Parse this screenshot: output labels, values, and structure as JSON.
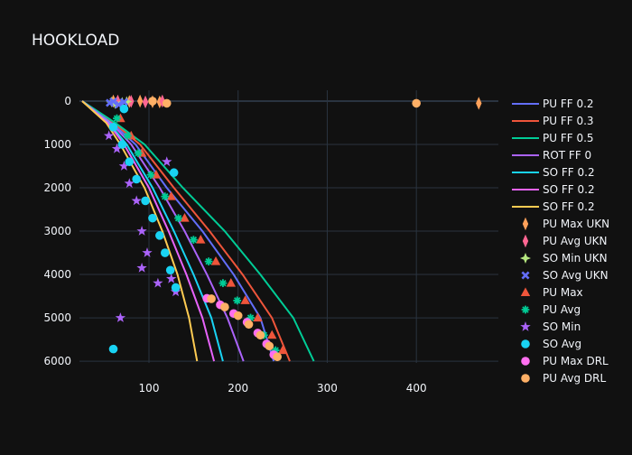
{
  "chart_data": {
    "type": "scatter",
    "title": "HOOKLOAD",
    "xlabel": "",
    "ylabel": "",
    "xlim": [
      22,
      492
    ],
    "ylim": [
      6040,
      -250
    ],
    "x_ticks": [
      100,
      200,
      300,
      400
    ],
    "y_ticks": [
      0,
      1000,
      2000,
      3000,
      4000,
      5000,
      6000
    ],
    "grid": true,
    "legend_position": "right",
    "colors": {
      "background": "#111111",
      "grid": "#2a3440",
      "text": "#f2f5fa"
    },
    "series": [
      {
        "name": "PU FF 0.2",
        "kind": "line",
        "color": "#636efa",
        "x": [
          25,
          58,
          85,
          120,
          160,
          195,
          225,
          240
        ],
        "y": [
          0,
          500,
          1000,
          2000,
          3000,
          4000,
          5000,
          6000
        ]
      },
      {
        "name": "PU FF 0.3",
        "kind": "line",
        "color": "#ef553b",
        "x": [
          25,
          60,
          90,
          128,
          168,
          205,
          238,
          258
        ],
        "y": [
          0,
          500,
          1000,
          2000,
          3000,
          4000,
          5000,
          6000
        ]
      },
      {
        "name": "PU FF 0.5",
        "kind": "line",
        "color": "#00cc96",
        "x": [
          25,
          62,
          95,
          138,
          185,
          225,
          262,
          285
        ],
        "y": [
          0,
          500,
          1000,
          2000,
          3000,
          4000,
          5000,
          6000
        ]
      },
      {
        "name": "ROT FF 0",
        "kind": "line",
        "color": "#ab63fa",
        "x": [
          25,
          57,
          80,
          112,
          140,
          165,
          188,
          206
        ],
        "y": [
          0,
          500,
          1000,
          2000,
          3000,
          4000,
          5000,
          6000
        ]
      },
      {
        "name": "SO FF 0.2",
        "kind": "line",
        "color": "#19d3f3",
        "x": [
          25,
          55,
          75,
          104,
          128,
          150,
          170,
          183
        ],
        "y": [
          0,
          500,
          1000,
          2000,
          3000,
          4000,
          5000,
          6000
        ]
      },
      {
        "name": "SO FF 0.2",
        "kind": "line",
        "color": "#e763fa",
        "x": [
          25,
          54,
          72,
          100,
          122,
          142,
          160,
          173
        ],
        "y": [
          0,
          500,
          1000,
          2000,
          3000,
          4000,
          5000,
          6000
        ]
      },
      {
        "name": "SO FF 0.2",
        "kind": "line",
        "color": "#fecb52",
        "x": [
          25,
          52,
          68,
          95,
          115,
          132,
          145,
          154
        ],
        "y": [
          0,
          500,
          1000,
          2000,
          3000,
          4000,
          5000,
          6000
        ]
      },
      {
        "name": "PU Max UKN",
        "kind": "marker",
        "symbol": "diamond-tall",
        "color": "#ffa15a",
        "x": [
          60,
          78,
          90,
          104,
          112,
          470
        ],
        "y": [
          0,
          10,
          0,
          15,
          20,
          50
        ]
      },
      {
        "name": "PU Avg UKN",
        "kind": "marker",
        "symbol": "diamond-tall",
        "color": "#ff6692",
        "x": [
          65,
          80,
          96,
          115
        ],
        "y": [
          0,
          5,
          20,
          0
        ]
      },
      {
        "name": "SO Min UKN",
        "kind": "marker",
        "symbol": "star-diamond",
        "color": "#b6e880",
        "x": [
          58,
          62,
          70,
          75
        ],
        "y": [
          20,
          60,
          30,
          10
        ]
      },
      {
        "name": "SO Avg UKN",
        "kind": "marker",
        "symbol": "x",
        "color": "#636efa",
        "x": [
          56,
          60,
          66,
          72
        ],
        "y": [
          40,
          10,
          80,
          20
        ]
      },
      {
        "name": "PU Max",
        "kind": "marker",
        "symbol": "triangle",
        "color": "#ef553b",
        "x": [
          68,
          80,
          92,
          108,
          125,
          140,
          158,
          175,
          192,
          208,
          222,
          238,
          250
        ],
        "y": [
          400,
          800,
          1200,
          1700,
          2200,
          2700,
          3200,
          3700,
          4200,
          4600,
          5000,
          5400,
          5750
        ]
      },
      {
        "name": "PU Avg",
        "kind": "marker",
        "symbol": "asterisk",
        "color": "#00cc96",
        "x": [
          64,
          76,
          88,
          102,
          118,
          133,
          150,
          167,
          183,
          199,
          214,
          229,
          242
        ],
        "y": [
          400,
          800,
          1200,
          1700,
          2200,
          2700,
          3200,
          3700,
          4200,
          4600,
          5000,
          5400,
          5750
        ]
      },
      {
        "name": "SO Min",
        "kind": "marker",
        "symbol": "star",
        "color": "#ab63fa",
        "x": [
          55,
          64,
          72,
          78,
          86,
          92,
          98,
          110,
          68,
          92,
          120,
          125,
          130
        ],
        "y": [
          800,
          1100,
          1500,
          1900,
          2300,
          3000,
          3500,
          4200,
          5000,
          3850,
          1400,
          4100,
          4400
        ]
      },
      {
        "name": "SO Avg",
        "kind": "marker",
        "symbol": "circle",
        "color": "#19d3f3",
        "x": [
          60,
          70,
          78,
          86,
          96,
          104,
          112,
          118,
          124,
          130,
          60,
          72,
          128
        ],
        "y": [
          600,
          1000,
          1400,
          1800,
          2300,
          2700,
          3100,
          3500,
          3900,
          4300,
          5720,
          180,
          1650
        ]
      },
      {
        "name": "PU Max DRL",
        "kind": "marker",
        "symbol": "circle",
        "color": "#ff6ff0",
        "x": [
          165,
          180,
          195,
          210,
          222,
          232,
          240
        ],
        "y": [
          4550,
          4700,
          4900,
          5100,
          5350,
          5600,
          5850
        ]
      },
      {
        "name": "PU Avg DRL",
        "kind": "marker",
        "symbol": "circle",
        "color": "#ffb066",
        "x": [
          170,
          185,
          200,
          212,
          225,
          235,
          244,
          400,
          120,
          104
        ],
        "y": [
          4560,
          4750,
          4950,
          5150,
          5400,
          5650,
          5900,
          50,
          50,
          0
        ]
      }
    ]
  }
}
